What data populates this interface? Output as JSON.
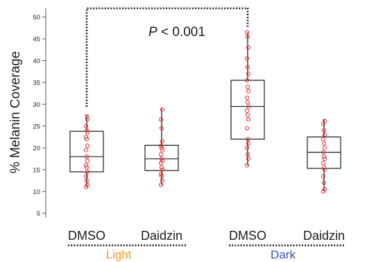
{
  "chart_data": {
    "type": "box",
    "ylabel": "% Melanin Coverage",
    "ylim": [
      4,
      52
    ],
    "yticks": [
      5,
      10,
      15,
      20,
      25,
      30,
      35,
      40,
      45,
      50
    ],
    "categories": [
      "DMSO",
      "Daidzin",
      "DMSO",
      "Daidzin"
    ],
    "groups": [
      {
        "label": "Light",
        "members": [
          0,
          1
        ],
        "color": "#f7941d"
      },
      {
        "label": "Dark",
        "members": [
          2,
          3
        ],
        "color": "#3953a4"
      }
    ],
    "boxes": [
      {
        "min": 11,
        "q1": 14.5,
        "median": 18,
        "q3": 23.8,
        "max": 27.5,
        "points": [
          11,
          11.5,
          12.5,
          13.5,
          14.5,
          15.5,
          16,
          17,
          18,
          19.5,
          20.5,
          22,
          22.5,
          23.5,
          24,
          25,
          26.5,
          27.2
        ]
      },
      {
        "min": 11.5,
        "q1": 14.8,
        "median": 17.5,
        "q3": 20.6,
        "max": 29,
        "points": [
          11.5,
          12.5,
          13.5,
          14,
          15,
          15.5,
          16.5,
          17,
          17.5,
          18.5,
          19.5,
          20,
          20.5,
          21.5,
          24.5,
          26.5,
          28.8
        ]
      },
      {
        "min": 16,
        "q1": 22,
        "median": 29.5,
        "q3": 35.5,
        "max": 46.5,
        "points": [
          16,
          17.5,
          18.5,
          20,
          21,
          22,
          24.5,
          26.5,
          27.5,
          28.5,
          29.5,
          30.5,
          31.5,
          33,
          34,
          35.5,
          37,
          38.5,
          40.5,
          43,
          45.5,
          46.5
        ]
      },
      {
        "min": 10,
        "q1": 15.3,
        "median": 19,
        "q3": 22.5,
        "max": 26.5,
        "points": [
          10,
          10.5,
          12,
          13.5,
          15,
          15.5,
          16.5,
          17.5,
          18,
          19,
          20,
          21,
          22,
          23,
          24,
          25.5,
          26.2
        ]
      }
    ],
    "annotation": {
      "text_italic": "P",
      "text_rest": " < 0.001",
      "between": [
        0,
        2
      ]
    },
    "colors": {
      "point": "#e33030",
      "box": "#1a1a1a",
      "whisker": "#1a1a1a"
    }
  }
}
